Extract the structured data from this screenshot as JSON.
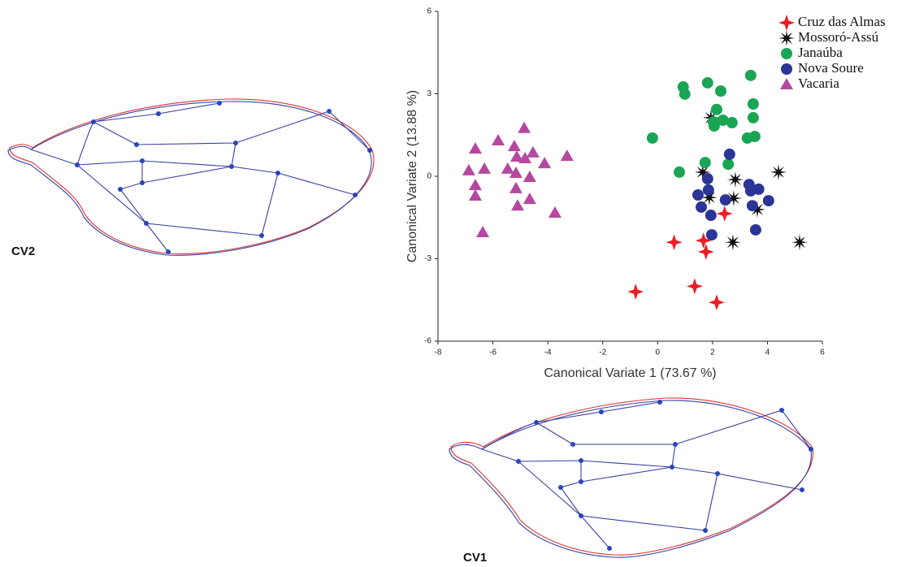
{
  "chart_data": {
    "type": "scatter",
    "x_label": "Canonical Variate 1 (73.67 %)",
    "y_label": "Canonical Variate 2 (13.88 %)",
    "xlim": [
      -8,
      6
    ],
    "xticks": [
      -8,
      -6,
      -4,
      -2,
      0,
      2,
      4,
      6
    ],
    "ylim": [
      -6,
      6
    ],
    "yticks": [
      -6,
      -3,
      0,
      3,
      6
    ],
    "legend": "upper right",
    "series": [
      {
        "name": "Cruz das Almas",
        "color": "#ee1c24",
        "marker": "star4",
        "x": [
          -0.8,
          0.6,
          1.35,
          1.67,
          1.76,
          2.15,
          2.44
        ],
        "values": [
          -4.2,
          -2.4,
          -4.0,
          -2.34,
          -2.75,
          -4.59,
          -1.36
        ]
      },
      {
        "name": "Mossoró-Assú",
        "color": "#111111",
        "marker": "starburst",
        "x": [
          1.94,
          1.64,
          1.88,
          2.83,
          2.77,
          3.63,
          4.4,
          2.74,
          5.17
        ],
        "values": [
          2.13,
          0.15,
          -0.77,
          -0.12,
          -0.8,
          -1.21,
          0.15,
          -2.4,
          -2.4
        ]
      },
      {
        "name": "Janaúba",
        "color": "#1aa555",
        "marker": "circle",
        "x": [
          -0.19,
          0.93,
          0.99,
          1.82,
          2.3,
          2.15,
          2.03,
          2.06,
          2.38,
          2.71,
          3.39,
          3.48,
          3.48,
          3.27,
          3.54,
          0.79,
          1.73,
          2.57
        ],
        "values": [
          1.39,
          3.25,
          2.99,
          3.4,
          3.1,
          2.43,
          1.98,
          1.83,
          2.04,
          1.95,
          3.67,
          2.63,
          2.13,
          1.39,
          1.45,
          0.15,
          0.5,
          0.44
        ]
      },
      {
        "name": "Nova Soure",
        "color": "#2b3497",
        "marker": "circle",
        "x": [
          2.62,
          1.82,
          1.47,
          1.59,
          1.94,
          2.47,
          3.33,
          3.39,
          3.68,
          3.45,
          4.04,
          3.57,
          1.97,
          1.85
        ],
        "values": [
          0.8,
          -0.09,
          -0.68,
          -1.12,
          -1.42,
          -0.86,
          -0.3,
          -0.53,
          -0.47,
          -1.07,
          -0.89,
          -1.95,
          -2.13,
          -0.5
        ]
      },
      {
        "name": "Vacaria",
        "color": "#b5489f",
        "marker": "triangle",
        "x": [
          -6.64,
          -5.81,
          -4.86,
          -5.22,
          -4.54,
          -4.12,
          -3.3,
          -6.88,
          -6.31,
          -6.64,
          -6.64,
          -5.46,
          -5.16,
          -5.13,
          -4.83,
          -4.66,
          -5.16,
          -4.66,
          -5.1,
          -3.74,
          -6.37
        ],
        "values": [
          1.0,
          1.3,
          1.75,
          1.09,
          0.86,
          0.47,
          0.74,
          0.21,
          0.27,
          -0.33,
          -0.71,
          0.27,
          0.12,
          0.71,
          0.65,
          -0.03,
          -0.44,
          -0.83,
          -1.07,
          -1.33,
          -2.04
        ]
      }
    ]
  },
  "figure_labels": {
    "cv2": "CV2",
    "cv1": "CV1"
  }
}
